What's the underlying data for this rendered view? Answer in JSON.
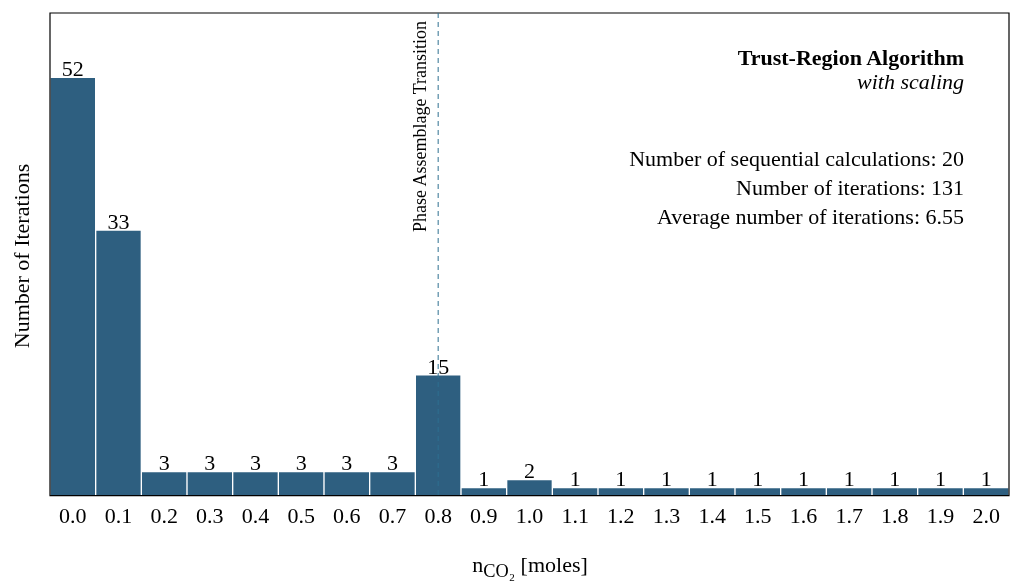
{
  "chart_data": {
    "type": "bar",
    "title": "Trust-Region Algorithm",
    "subtitle": "with scaling",
    "xlabel": "n$_{CO₂}$ [moles]",
    "ylabel": "Number of Iterations",
    "categories": [
      "0.0",
      "0.1",
      "0.2",
      "0.3",
      "0.4",
      "0.5",
      "0.6",
      "0.7",
      "0.8",
      "0.9",
      "1.0",
      "1.1",
      "1.2",
      "1.3",
      "1.4",
      "1.5",
      "1.6",
      "1.7",
      "1.8",
      "1.9",
      "2.0"
    ],
    "values": [
      52,
      33,
      3,
      3,
      3,
      3,
      3,
      3,
      15,
      1,
      2,
      1,
      1,
      1,
      1,
      1,
      1,
      1,
      1,
      1,
      1
    ],
    "color": "#2e5f80",
    "data_labels": true,
    "grid": false,
    "legend": false,
    "ref_lines": [
      {
        "axis": "x",
        "value": "0.8",
        "label": "Phase Assemblage Transition",
        "color": "#2e6f90",
        "line_style": "dashed"
      }
    ],
    "annotations": [
      "Number of sequential calculations: 20",
      "Number of iterations: 131",
      "Average number of iterations: 6.55"
    ]
  }
}
